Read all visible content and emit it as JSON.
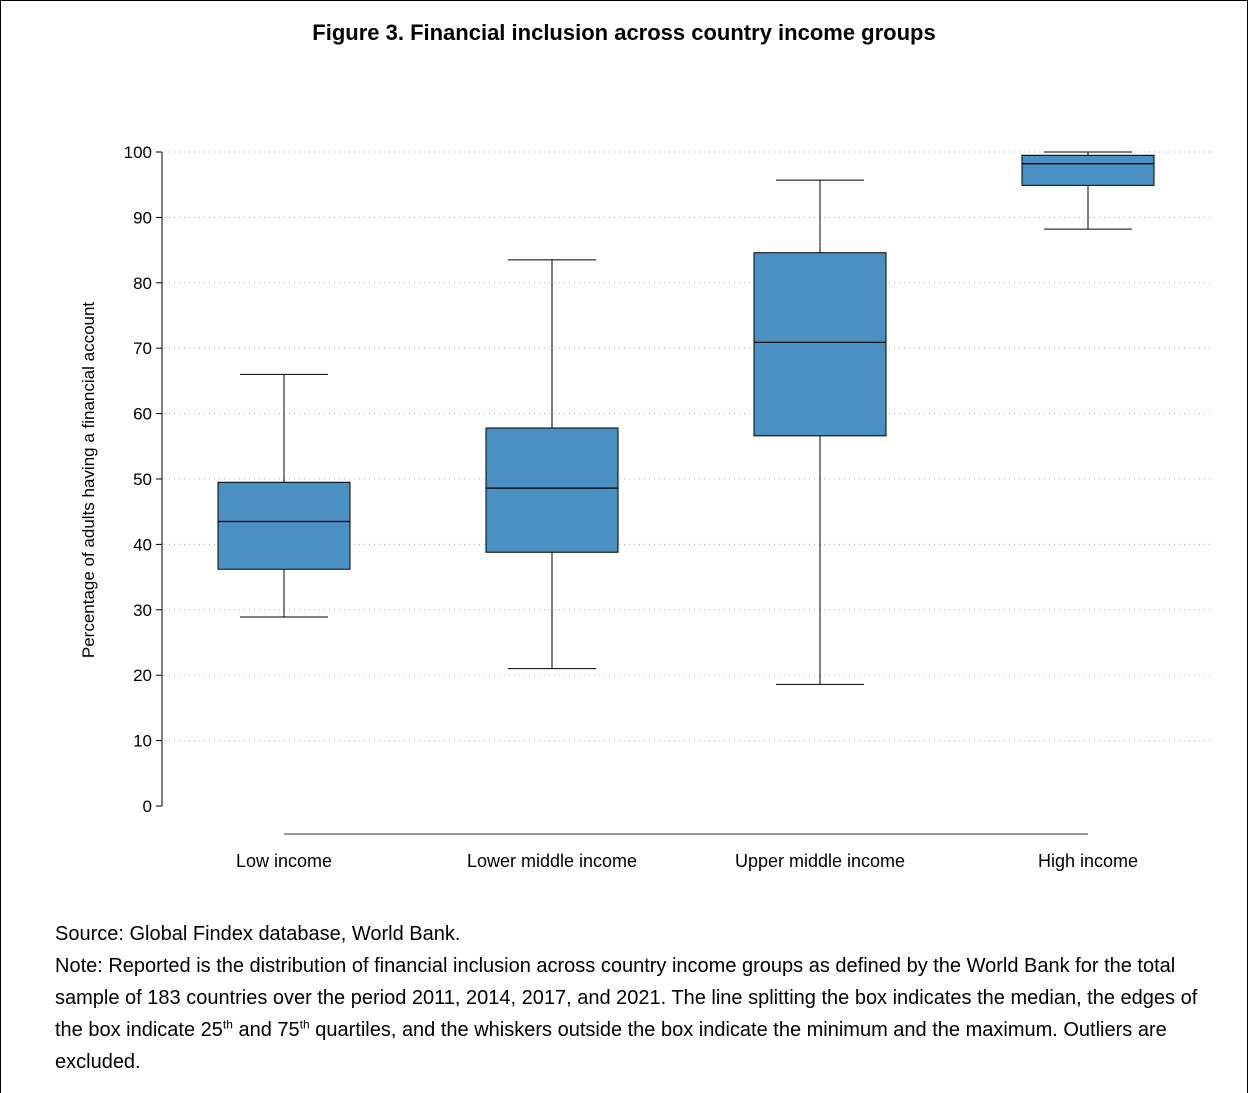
{
  "figure": {
    "title": "Figure 3. Financial inclusion across country income groups"
  },
  "chart_data": {
    "type": "box",
    "title": "Figure 3. Financial inclusion across country income groups",
    "xlabel": "",
    "ylabel": "Percentage of adults having a financial account",
    "ylim": [
      0,
      100
    ],
    "yticks": [
      0,
      10,
      20,
      30,
      40,
      50,
      60,
      70,
      80,
      90,
      100
    ],
    "grid": "horizontal dotted",
    "categories": [
      "Low income",
      "Lower middle income",
      "Upper middle income",
      "High income"
    ],
    "boxes": [
      {
        "category": "Low income",
        "min": 28.9,
        "q1": 36.2,
        "median": 43.5,
        "q3": 49.5,
        "max": 66.0
      },
      {
        "category": "Lower middle income",
        "min": 21.0,
        "q1": 38.8,
        "median": 48.6,
        "q3": 57.8,
        "max": 83.5
      },
      {
        "category": "Upper middle income",
        "min": 18.6,
        "q1": 56.6,
        "median": 70.9,
        "q3": 84.6,
        "max": 95.7
      },
      {
        "category": "High income",
        "min": 88.2,
        "q1": 94.9,
        "median": 98.2,
        "q3": 99.5,
        "max": 100.0
      }
    ],
    "colors": {
      "box_fill": "#4a90c2",
      "box_stroke": "#000000",
      "grid": "#b0b0b0",
      "baseline": "#999999"
    }
  },
  "notes": {
    "source": "Source: Global Findex database, World Bank.",
    "note_start": "Note: Reported is the distribution of financial inclusion across country income groups as defined by the World Bank for the total sample of 183 countries over the period 2011, 2014, 2017, and 2021. The line splitting the box indicates the median, the edges of the box indicate 25",
    "sup1": "th",
    "and": " and 75",
    "sup2": "th",
    "note_end": " quartiles, and the whiskers outside the box indicate the minimum and the maximum. Outliers are excluded."
  }
}
